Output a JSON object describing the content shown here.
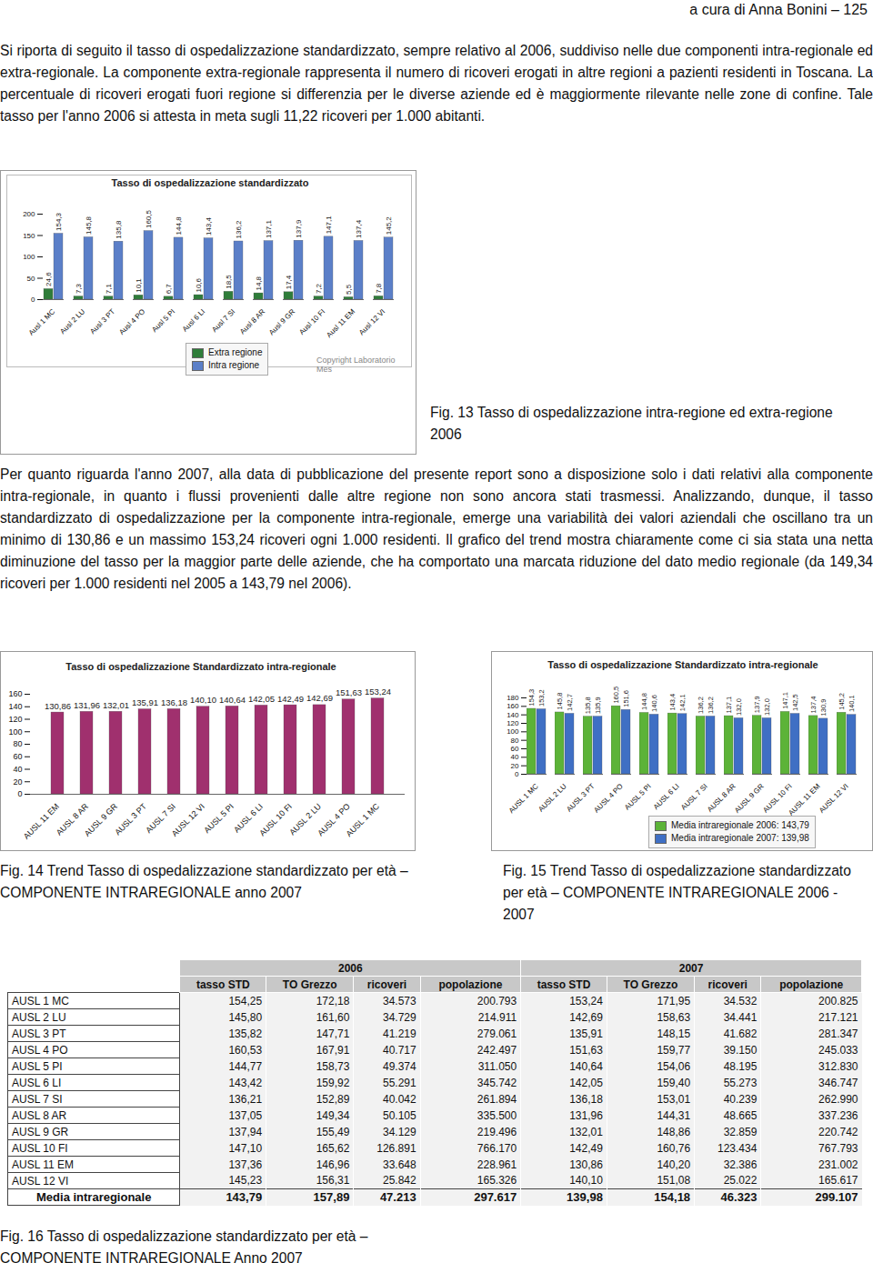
{
  "header": "a cura di Anna Bonini – 125",
  "paragraphs": [
    "Si riporta di seguito il tasso di ospedalizzazione standardizzato, sempre relativo al 2006, suddiviso nelle due componenti intra-regionale ed extra-regionale. La componente extra-regionale rappresenta il numero di ricoveri erogati in altre regioni a pazienti residenti in Toscana. La percentuale di ricoveri erogati fuori regione si differenzia per le diverse aziende ed è maggiormente rilevante nelle zone di confine. Tale tasso per l'anno 2006 si attesta in meta sugli 11,22 ricoveri per 1.000 abitanti.",
    "Per quanto riguarda l'anno 2007, alla data di pubblicazione del presente report sono a disposizione solo i dati relativi alla componente intra-regionale, in quanto i flussi provenienti dalle altre regione non sono ancora stati trasmessi. Analizzando, dunque, il tasso standardizzato di ospedalizzazione per la componente intra-regionale, emerge una variabilità dei valori aziendali che oscillano tra un minimo di 130,86 e un massimo 153,24 ricoveri ogni 1.000 residenti. Il grafico del trend mostra chiaramente come ci sia stata una netta diminuzione del tasso per la maggior parte delle aziende, che ha comportato una marcata riduzione del dato medio regionale (da 149,34 ricoveri per 1.000 residenti nel 2005 a 143,79 nel 2006)."
  ],
  "chart_data": [
    {
      "type": "bar",
      "title": "Tasso di ospedalizzazione standardizzato",
      "caption": "Fig. 13 Tasso di ospedalizzazione intra-regione ed extra-regione 2006",
      "categories": [
        "Ausl 1 MC",
        "Ausl 2 LU",
        "Ausl 3 PT",
        "Ausl 4 PO",
        "Ausl 5 PI",
        "Ausl 6 LI",
        "Ausl 7 SI",
        "Ausl 8 AR",
        "Ausl 9 GR",
        "Ausl 10 FI",
        "Ausl 11 EM",
        "Ausl 12 VI"
      ],
      "series": [
        {
          "name": "Extra regione",
          "color": "#2f7d3a",
          "values": [
            24.6,
            7.3,
            7.1,
            10.1,
            6.7,
            10.6,
            18.5,
            14.8,
            17.4,
            7.2,
            5.5,
            7.8
          ],
          "value_labels": [
            "24,6",
            "7,3",
            "7,1",
            "10,1",
            "6,7",
            "10,6",
            "18,5",
            "14,8",
            "17,4",
            "7,2",
            "5,5",
            "7,8"
          ]
        },
        {
          "name": "Intra regione",
          "color": "#5b7fc8",
          "values": [
            154.3,
            145.8,
            135.8,
            160.5,
            144.8,
            143.4,
            136.2,
            137.1,
            137.9,
            147.1,
            137.4,
            145.2
          ],
          "value_labels": [
            "154,3",
            "145,8",
            "135,8",
            "160,5",
            "144,8",
            "143,4",
            "136,2",
            "137,1",
            "137,9",
            "147,1",
            "137,4",
            "145,2"
          ]
        }
      ],
      "ylim": [
        0,
        200
      ],
      "yticks": [
        0,
        50,
        100,
        150,
        200
      ],
      "grid": false,
      "data_labels": true,
      "legend": "bottom",
      "annotations": [
        "Copyright Laboratorio Mes"
      ]
    },
    {
      "type": "bar",
      "title": "Tasso di ospedalizzazione Standardizzato  intra-regionale",
      "caption": "Fig. 14 Trend Tasso  di ospedalizzazione standardizzato per età – COMPONENTE INTRAREGIONALE anno 2007",
      "categories": [
        "AUSL 11 EM",
        "AUSL 8 AR",
        "AUSL 9 GR",
        "AUSL 3 PT",
        "AUSL 7 SI",
        "AUSL 12 VI",
        "AUSL 5 PI",
        "AUSL 6 LI",
        "AUSL 10 FI",
        "AUSL 2 LU",
        "AUSL 4 PO",
        "AUSL 1 MC"
      ],
      "values": [
        130.86,
        131.96,
        132.01,
        135.91,
        136.18,
        140.1,
        140.64,
        142.05,
        142.49,
        142.69,
        151.63,
        153.24
      ],
      "value_labels": [
        "130,86",
        "131,96",
        "132,01",
        "135,91",
        "136,18",
        "140,10",
        "140,64",
        "142,05",
        "142,49",
        "142,69",
        "151,63",
        "153,24"
      ],
      "color": "#a0306e",
      "ylim": [
        0,
        160
      ],
      "yticks": [
        0,
        20,
        40,
        60,
        80,
        100,
        120,
        140,
        160
      ],
      "grid": false,
      "data_labels": true
    },
    {
      "type": "bar",
      "title": "Tasso di ospedalizzazione Standardizzato intra-regionale",
      "caption": "Fig. 15 Trend Tasso  di ospedalizzazione standardizzato per età – COMPONENTE INTRAREGIONALE 2006 - 2007",
      "categories": [
        "AUSL 1 MC",
        "AUSL 2 LU",
        "AUSL 3 PT",
        "AUSL 4 PO",
        "AUSL 5 PI",
        "AUSL 6 LI",
        "AUSL 7 SI",
        "AUSL 8 AR",
        "AUSL 9 GR",
        "AUSL 10 FI",
        "AUSL 11 EM",
        "AUSL 12 VI"
      ],
      "series": [
        {
          "name": "Media intraregionale 2006: 143,79",
          "color": "#5cb338",
          "values": [
            154.3,
            145.8,
            135.8,
            160.5,
            144.8,
            143.4,
            136.2,
            137.1,
            137.9,
            147.1,
            137.4,
            145.2
          ],
          "value_labels": [
            "154,3",
            "145,8",
            "135,8",
            "160,5",
            "144,8",
            "143,4",
            "136,2",
            "137,1",
            "137,9",
            "147,1",
            "137,4",
            "145,2"
          ]
        },
        {
          "name": "Media intraregionale 2007: 139,98",
          "color": "#3f6fc4",
          "values": [
            153.2,
            142.7,
            135.9,
            151.6,
            140.6,
            142.1,
            136.2,
            132.0,
            132.0,
            142.5,
            130.9,
            140.1
          ],
          "value_labels": [
            "153,2",
            "142,7",
            "135,9",
            "151,6",
            "140,6",
            "142,1",
            "136,2",
            "132,0",
            "132,0",
            "142,5",
            "130,9",
            "140,1"
          ]
        }
      ],
      "ylim": [
        0,
        180
      ],
      "yticks": [
        0,
        20,
        40,
        60,
        80,
        100,
        120,
        140,
        160,
        180
      ],
      "grid": false,
      "data_labels": true,
      "legend": "bottom-right"
    }
  ],
  "table": {
    "caption": "Fig. 16 Tasso di ospedalizzazione standardizzato per età – COMPONENTE INTRAREGIONALE Anno 2007",
    "years": [
      "2006",
      "2007"
    ],
    "columns": [
      "tasso STD",
      "TO Grezzo",
      "ricoveri",
      "popolazione"
    ],
    "rows": [
      [
        "AUSL 1 MC",
        "154,25",
        "172,18",
        "34.573",
        "200.793",
        "153,24",
        "171,95",
        "34.532",
        "200.825"
      ],
      [
        "AUSL 2 LU",
        "145,80",
        "161,60",
        "34.729",
        "214.911",
        "142,69",
        "158,63",
        "34.441",
        "217.121"
      ],
      [
        "AUSL 3 PT",
        "135,82",
        "147,71",
        "41.219",
        "279.061",
        "135,91",
        "148,15",
        "41.682",
        "281.347"
      ],
      [
        "AUSL 4 PO",
        "160,53",
        "167,91",
        "40.717",
        "242.497",
        "151,63",
        "159,77",
        "39.150",
        "245.033"
      ],
      [
        "AUSL 5 PI",
        "144,77",
        "158,73",
        "49.374",
        "311.050",
        "140,64",
        "154,06",
        "48.195",
        "312.830"
      ],
      [
        "AUSL 6 LI",
        "143,42",
        "159,92",
        "55.291",
        "345.742",
        "142,05",
        "159,40",
        "55.273",
        "346.747"
      ],
      [
        "AUSL 7 SI",
        "136,21",
        "152,89",
        "40.042",
        "261.894",
        "136,18",
        "153,01",
        "40.239",
        "262.990"
      ],
      [
        "AUSL 8 AR",
        "137,05",
        "149,34",
        "50.105",
        "335.500",
        "131,96",
        "144,31",
        "48.665",
        "337.236"
      ],
      [
        "AUSL 9 GR",
        "137,94",
        "155,49",
        "34.129",
        "219.496",
        "132,01",
        "148,86",
        "32.859",
        "220.742"
      ],
      [
        "AUSL 10 FI",
        "147,10",
        "165,62",
        "126.891",
        "766.170",
        "142,49",
        "160,76",
        "123.434",
        "767.793"
      ],
      [
        "AUSL 11 EM",
        "137,36",
        "146,96",
        "33.648",
        "228.961",
        "130,86",
        "140,20",
        "32.386",
        "231.002"
      ],
      [
        "AUSL 12 VI",
        "145,23",
        "156,31",
        "25.842",
        "165.326",
        "140,10",
        "151,08",
        "25.022",
        "165.617"
      ]
    ],
    "footer": [
      "Media intraregionale",
      "143,79",
      "157,89",
      "47.213",
      "297.617",
      "139,98",
      "154,18",
      "46.323",
      "299.107"
    ]
  }
}
